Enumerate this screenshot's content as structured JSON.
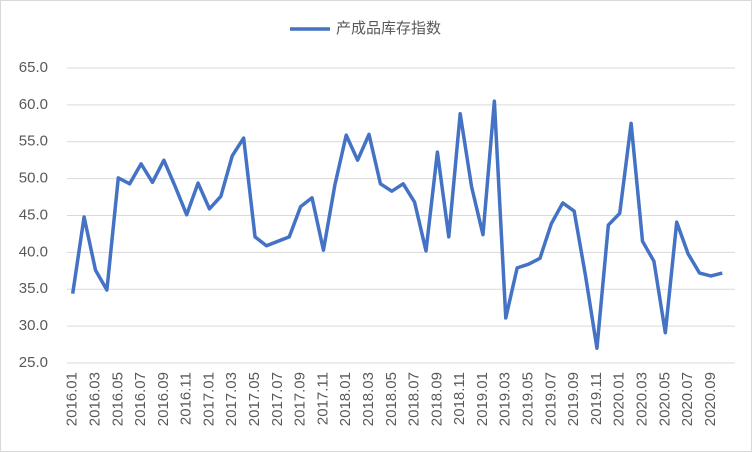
{
  "chart_data": {
    "type": "line",
    "categories": [
      "2016.01",
      null,
      "2016.03",
      null,
      "2016.05",
      null,
      "2016.07",
      null,
      "2016.09",
      null,
      "2016.11",
      null,
      "2017.01",
      null,
      "2017.03",
      null,
      "2017.05",
      null,
      "2017.07",
      null,
      "2017.09",
      null,
      "2017.11",
      null,
      "2018.01",
      null,
      "2018.03",
      null,
      "2018.05",
      null,
      "2018.07",
      null,
      "2018.09",
      null,
      "2018.11",
      null,
      "2019.01",
      null,
      "2019.03",
      null,
      "2019.05",
      null,
      "2019.07",
      null,
      "2019.09",
      null,
      "2019.11",
      null,
      "2020.01",
      null,
      "2020.03",
      null,
      "2020.05",
      null,
      "2020.07",
      null,
      "2020.09",
      null
    ],
    "series": [
      {
        "name": "产成品库存指数",
        "color": "#4472c4",
        "values": [
          34.4,
          44.8,
          37.6,
          34.9,
          50.1,
          49.3,
          52.0,
          49.5,
          52.5,
          48.9,
          45.1,
          49.4,
          45.9,
          47.6,
          53.1,
          55.5,
          42.1,
          40.9,
          41.5,
          42.1,
          46.2,
          47.4,
          40.3,
          49.1,
          55.9,
          52.5,
          56.0,
          49.3,
          48.3,
          49.3,
          46.8,
          40.2,
          53.6,
          42.1,
          58.8,
          48.9,
          42.4,
          60.5,
          31.1,
          37.9,
          38.4,
          39.2,
          43.9,
          46.7,
          45.6,
          36.8,
          27.0,
          43.7,
          45.3,
          57.5,
          41.5,
          38.8,
          29.1,
          44.1,
          39.8,
          37.2,
          36.8,
          37.2
        ]
      }
    ],
    "ylim": [
      25,
      65
    ],
    "yticks": [
      {
        "value": 25,
        "label": "25.0"
      },
      {
        "value": 30,
        "label": "30.0"
      },
      {
        "value": 35,
        "label": "35.0"
      },
      {
        "value": 40,
        "label": "40.0"
      },
      {
        "value": 45,
        "label": "45.0"
      },
      {
        "value": 50,
        "label": "50.0"
      },
      {
        "value": 55,
        "label": "55.0"
      },
      {
        "value": 60,
        "label": "60.0"
      },
      {
        "value": 65,
        "label": "65.0"
      }
    ],
    "grid": true,
    "legend": "top"
  }
}
